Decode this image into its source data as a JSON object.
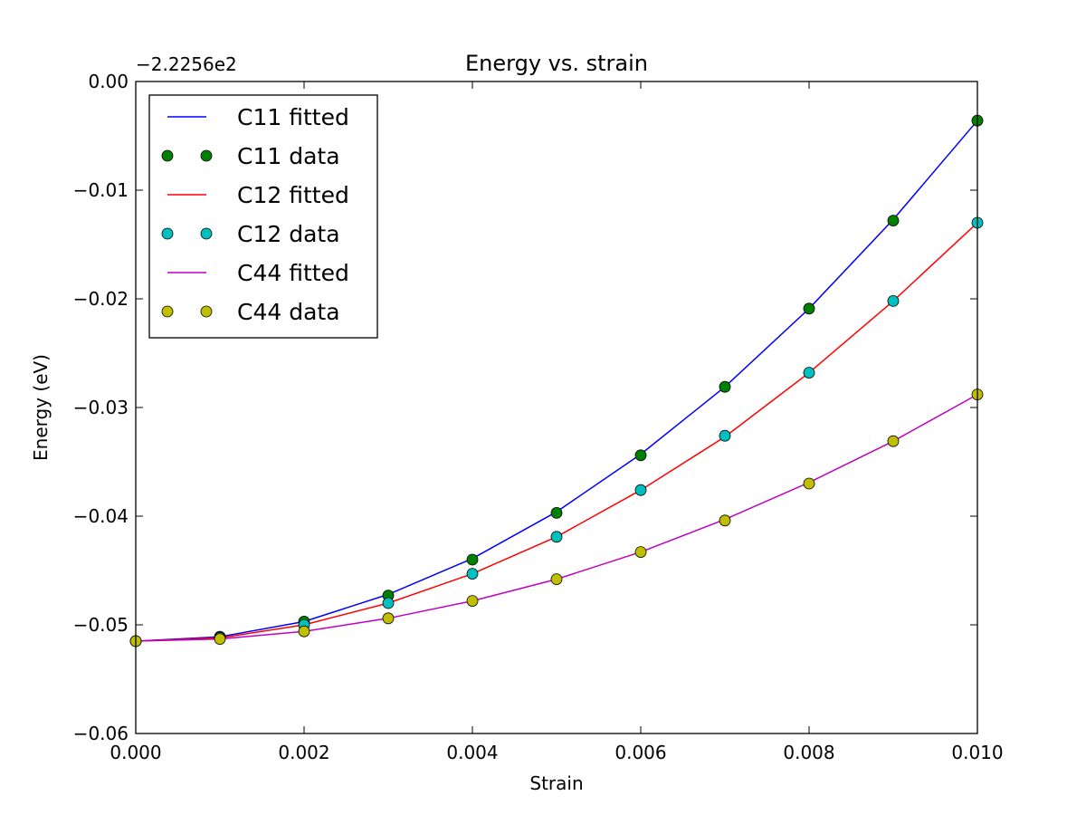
{
  "chart_data": {
    "type": "line",
    "title": "Energy vs. strain",
    "xlabel": "Strain",
    "ylabel": "Energy (eV)",
    "y_offset_label": "−2.2256e2",
    "xlim": [
      0.0,
      0.01
    ],
    "ylim": [
      -0.06,
      0.0
    ],
    "xticks": [
      "0.000",
      "0.002",
      "0.004",
      "0.006",
      "0.008",
      "0.010"
    ],
    "yticks": [
      "0.00",
      "−0.01",
      "−0.02",
      "−0.03",
      "−0.04",
      "−0.05",
      "−0.06"
    ],
    "grid": false,
    "legend_position": "upper-left",
    "x": [
      0.0,
      0.001,
      0.002,
      0.003,
      0.004,
      0.005,
      0.006,
      0.007,
      0.008,
      0.009,
      0.01
    ],
    "series": [
      {
        "name": "C11 fitted",
        "kind": "line",
        "color": "#0000ff",
        "values": [
          -0.0515,
          -0.0511,
          -0.0497,
          -0.0472,
          -0.0439,
          -0.0396,
          -0.0343,
          -0.0281,
          -0.0209,
          -0.0127,
          -0.0036
        ]
      },
      {
        "name": "C11 data",
        "kind": "points",
        "color": "#008000",
        "values": [
          -0.0515,
          -0.0511,
          -0.0497,
          -0.0473,
          -0.044,
          -0.0397,
          -0.0344,
          -0.0281,
          -0.0209,
          -0.0128,
          -0.0036
        ]
      },
      {
        "name": "C12 fitted",
        "kind": "line",
        "color": "#ff0000",
        "values": [
          -0.0515,
          -0.0512,
          -0.05,
          -0.048,
          -0.0453,
          -0.0419,
          -0.0376,
          -0.0327,
          -0.0268,
          -0.0202,
          -0.013
        ]
      },
      {
        "name": "C12 data",
        "kind": "points",
        "color": "#00bfbf",
        "values": [
          -0.0515,
          -0.0512,
          -0.05,
          -0.048,
          -0.0453,
          -0.0419,
          -0.0376,
          -0.0326,
          -0.0268,
          -0.0202,
          -0.013
        ]
      },
      {
        "name": "C44 fitted",
        "kind": "line",
        "color": "#bf00bf",
        "values": [
          -0.0515,
          -0.0513,
          -0.0506,
          -0.0494,
          -0.0478,
          -0.0458,
          -0.0433,
          -0.0403,
          -0.0369,
          -0.0331,
          -0.0288
        ]
      },
      {
        "name": "C44 data",
        "kind": "points",
        "color": "#bfbf00",
        "values": [
          -0.0515,
          -0.0513,
          -0.0506,
          -0.0494,
          -0.0478,
          -0.0458,
          -0.0433,
          -0.0404,
          -0.037,
          -0.0331,
          -0.0288
        ]
      }
    ]
  }
}
